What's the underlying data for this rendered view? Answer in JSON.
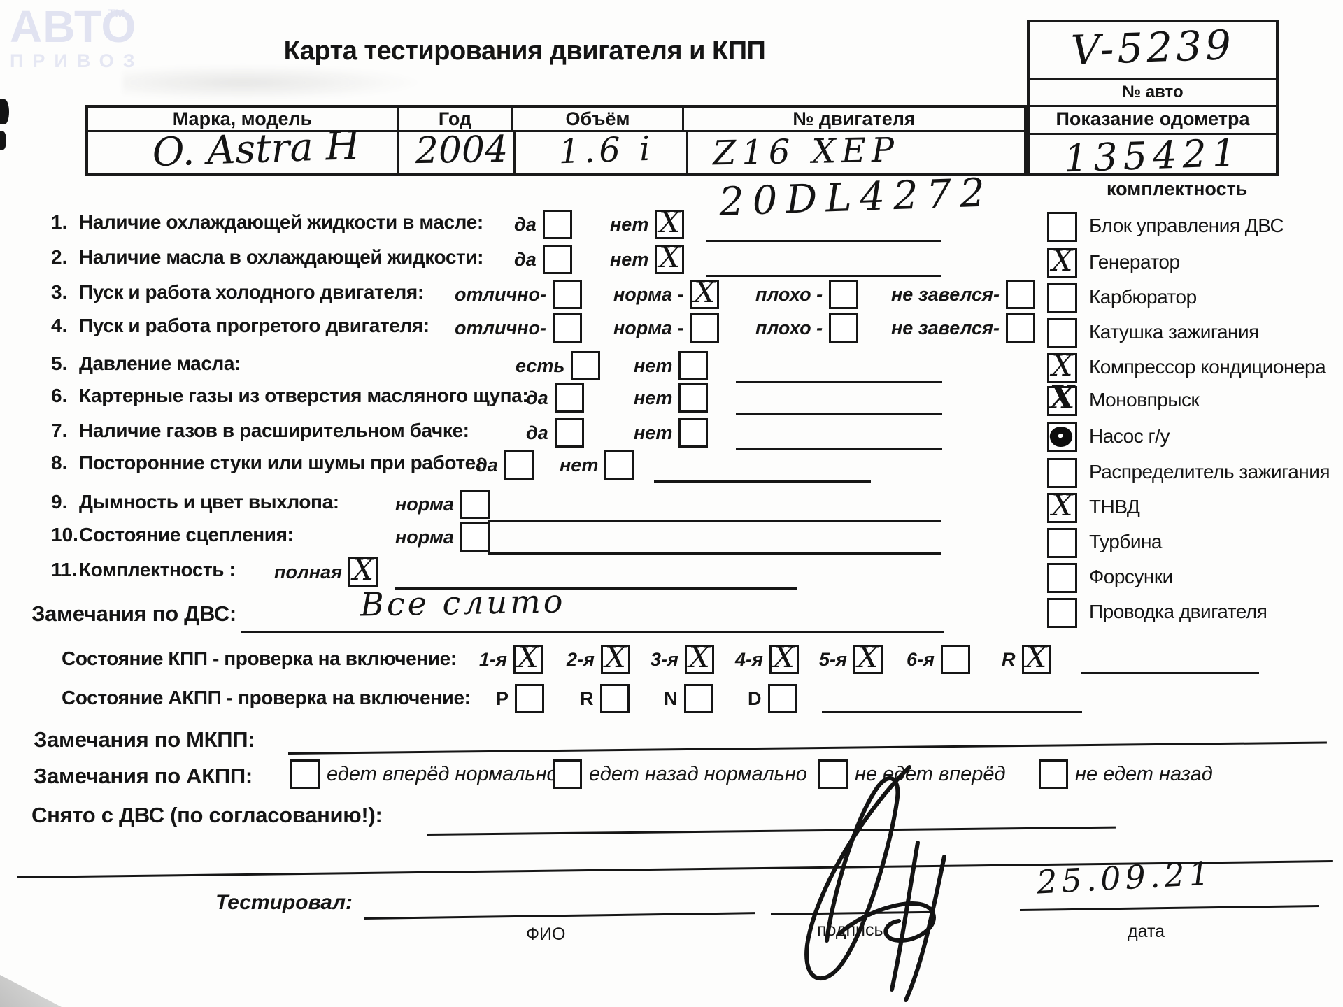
{
  "logo": {
    "brand": "АВТО",
    "tm": "ТМ",
    "sub": "ПРИВОЗ"
  },
  "title": "Карта тестирования двигателя  и КПП",
  "car_box": {
    "number": "V-5239",
    "number_label": "№ авто",
    "odometer_label": "Показание одометра",
    "odometer": "135421"
  },
  "car_table": {
    "col_model": "Марка, модель",
    "col_year": "Год",
    "col_volume": "Объём",
    "col_engine": "№ двигателя",
    "val_model": "O. Astra H",
    "val_year": "2004",
    "val_volume": "1.6 i",
    "val_engine": "Z16 XEP",
    "val_engine2": "20DL4272"
  },
  "equipment": {
    "title": "комплектность",
    "items": [
      {
        "label": "Блок управления ДВС",
        "mark": ""
      },
      {
        "label": "Генератор",
        "mark": "x"
      },
      {
        "label": "Карбюратор",
        "mark": ""
      },
      {
        "label": "Катушка зажигания",
        "mark": ""
      },
      {
        "label": "Компрессор кондиционера",
        "mark": "x"
      },
      {
        "label": "Моновпрыск",
        "mark": "x-bold"
      },
      {
        "label": "Насос г/у",
        "mark": "blob"
      },
      {
        "label": "Распределитель зажигания",
        "mark": ""
      },
      {
        "label": "ТНВД",
        "mark": "x"
      },
      {
        "label": "Турбина",
        "mark": ""
      },
      {
        "label": "Форсунки",
        "mark": ""
      },
      {
        "label": "Проводка двигателя",
        "mark": ""
      }
    ]
  },
  "checklist": [
    {
      "num": "1.",
      "label": "Наличие охлаждающей жидкости в масле:",
      "options": [
        {
          "label": "да",
          "checked": false
        },
        {
          "label": "нет",
          "checked": true
        }
      ]
    },
    {
      "num": "2.",
      "label": "Наличие масла в охлаждающей жидкости:",
      "options": [
        {
          "label": "да",
          "checked": false
        },
        {
          "label": "нет",
          "checked": true
        }
      ]
    },
    {
      "num": "3.",
      "label": "Пуск и работа холодного двигателя:",
      "options": [
        {
          "label": "отлично-",
          "checked": false
        },
        {
          "label": "норма -",
          "checked": true
        },
        {
          "label": "плохо -",
          "checked": false
        },
        {
          "label": "не завелся-",
          "checked": false
        }
      ]
    },
    {
      "num": "4.",
      "label": "Пуск и работа прогретого двигателя:",
      "options": [
        {
          "label": "отлично-",
          "checked": false
        },
        {
          "label": "норма -",
          "checked": false
        },
        {
          "label": "плохо -",
          "checked": false
        },
        {
          "label": "не завелся-",
          "checked": false
        }
      ]
    },
    {
      "num": "5.",
      "label": "Давление масла:",
      "options": [
        {
          "label": "есть",
          "checked": false
        },
        {
          "label": "нет",
          "checked": false
        }
      ]
    },
    {
      "num": "6.",
      "label": "Картерные газы из отверстия масляного щупа:",
      "options": [
        {
          "label": "да",
          "checked": false
        },
        {
          "label": "нет",
          "checked": false
        }
      ]
    },
    {
      "num": "7.",
      "label": "Наличие газов в расширительном бачке:",
      "options": [
        {
          "label": "да",
          "checked": false
        },
        {
          "label": "нет",
          "checked": false
        }
      ]
    },
    {
      "num": "8.",
      "label": "Посторонние стуки или шумы при работе:",
      "options": [
        {
          "label": "да",
          "checked": false
        },
        {
          "label": "нет",
          "checked": false
        }
      ]
    },
    {
      "num": "9.",
      "label": "Дымность и цвет выхлопа:",
      "options": [
        {
          "label": "норма",
          "checked": false
        }
      ]
    },
    {
      "num": "10.",
      "label": "Состояние сцепления:",
      "options": [
        {
          "label": "норма",
          "checked": false
        }
      ]
    },
    {
      "num": "11.",
      "label": "Комплектность :",
      "options": [
        {
          "label": "полная",
          "checked": true
        }
      ]
    }
  ],
  "dvs_notes": {
    "label": "Замечания по ДВС:",
    "value": "Все слито"
  },
  "kpp": {
    "bold": "Состояние КПП",
    "rest": " - проверка на включение:",
    "gears": [
      {
        "label": "1-я",
        "checked": true
      },
      {
        "label": "2-я",
        "checked": true
      },
      {
        "label": "3-я",
        "checked": true
      },
      {
        "label": "4-я",
        "checked": true
      },
      {
        "label": "5-я",
        "checked": true
      },
      {
        "label": "6-я",
        "checked": false
      },
      {
        "label": "R",
        "checked": true
      }
    ]
  },
  "akpp": {
    "bold": "Состояние АКПП",
    "rest": " - проверка на включение:",
    "positions": [
      {
        "label": "P",
        "checked": false
      },
      {
        "label": "R",
        "checked": false
      },
      {
        "label": "N",
        "checked": false
      },
      {
        "label": "D",
        "checked": false
      }
    ]
  },
  "mkpp_notes": {
    "label": "Замечания по МКПП:"
  },
  "akpp_notes": {
    "label": "Замечания по АКПП:",
    "options": [
      {
        "label": "едет вперёд нормально",
        "checked": false
      },
      {
        "label": "едет назад нормально",
        "checked": false
      },
      {
        "label": "не едет вперёд",
        "checked": false
      },
      {
        "label": "не едет назад",
        "checked": false
      }
    ]
  },
  "removed": {
    "label": "Снято с ДВС (по согласованию!):"
  },
  "footer": {
    "tester_label": "Тестировал:",
    "fio_label": "ФИО",
    "sign_label": "подпись",
    "date_label": "дата",
    "date_value": "25.09.21"
  }
}
